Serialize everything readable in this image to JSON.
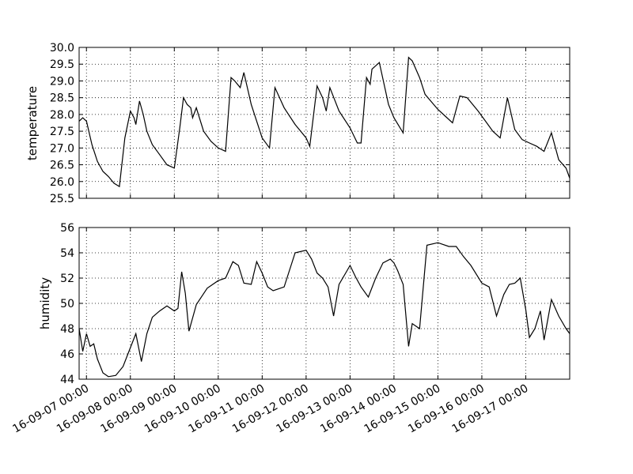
{
  "x_tick_labels": [
    "16-09-07 00:00",
    "16-09-08 00:00",
    "16-09-09 00:00",
    "16-09-10 00:00",
    "16-09-11 00:00",
    "16-09-12 00:00",
    "16-09-13 00:00",
    "16-09-14 00:00",
    "16-09-15 00:00",
    "16-09-16 00:00",
    "16-09-17 00:00"
  ],
  "chart_data": [
    {
      "type": "line",
      "ylabel": "temperature",
      "ylim": [
        25.5,
        30.0
      ],
      "yticks": [
        25.5,
        26.0,
        26.5,
        27.0,
        27.5,
        28.0,
        28.5,
        29.0,
        29.5,
        30.0
      ],
      "ytick_labels": [
        "25.5",
        "26.0",
        "26.5",
        "27.0",
        "27.5",
        "28.0",
        "28.5",
        "29.0",
        "29.5",
        "30.0"
      ],
      "grid": true,
      "color": "#000000",
      "x": [
        "2016-09-06 20:00",
        "2016-09-06 22:00",
        "2016-09-07 00:00",
        "2016-09-07 03:00",
        "2016-09-07 06:00",
        "2016-09-07 09:00",
        "2016-09-07 12:00",
        "2016-09-07 15:00",
        "2016-09-07 18:00",
        "2016-09-07 21:00",
        "2016-09-08 00:00",
        "2016-09-08 02:00",
        "2016-09-08 03:00",
        "2016-09-08 05:00",
        "2016-09-08 07:00",
        "2016-09-08 09:00",
        "2016-09-08 12:00",
        "2016-09-08 16:00",
        "2016-09-08 20:00",
        "2016-09-09 00:00",
        "2016-09-09 03:00",
        "2016-09-09 05:00",
        "2016-09-09 07:00",
        "2016-09-09 09:00",
        "2016-09-09 10:00",
        "2016-09-09 12:00",
        "2016-09-09 16:00",
        "2016-09-09 20:00",
        "2016-09-10 00:00",
        "2016-09-10 04:00",
        "2016-09-10 07:00",
        "2016-09-10 09:00",
        "2016-09-10 12:00",
        "2016-09-10 14:00",
        "2016-09-10 18:00",
        "2016-09-11 00:00",
        "2016-09-11 04:00",
        "2016-09-11 07:00",
        "2016-09-11 12:00",
        "2016-09-11 18:00",
        "2016-09-12 00:00",
        "2016-09-12 02:00",
        "2016-09-12 06:00",
        "2016-09-12 09:00",
        "2016-09-12 11:00",
        "2016-09-12 13:00",
        "2016-09-12 18:00",
        "2016-09-13 00:00",
        "2016-09-13 04:00",
        "2016-09-13 06:00",
        "2016-09-13 09:00",
        "2016-09-13 11:00",
        "2016-09-13 12:00",
        "2016-09-13 16:00",
        "2016-09-13 21:00",
        "2016-09-14 00:00",
        "2016-09-14 05:00",
        "2016-09-14 08:00",
        "2016-09-14 10:00",
        "2016-09-14 14:00",
        "2016-09-14 17:00",
        "2016-09-15 00:00",
        "2016-09-15 04:00",
        "2016-09-15 08:00",
        "2016-09-15 12:00",
        "2016-09-15 16:00",
        "2016-09-15 22:00",
        "2016-09-16 02:00",
        "2016-09-16 06:00",
        "2016-09-16 10:00",
        "2016-09-16 14:00",
        "2016-09-16 18:00",
        "2016-09-16 22:00",
        "2016-09-17 02:00",
        "2016-09-17 06:00",
        "2016-09-17 10:00",
        "2016-09-17 14:00",
        "2016-09-17 18:00",
        "2016-09-17 22:00",
        "2016-09-18 00:00"
      ],
      "y": [
        27.8,
        27.9,
        27.8,
        27.1,
        26.6,
        26.3,
        26.15,
        25.95,
        25.85,
        27.3,
        28.1,
        27.9,
        27.7,
        28.4,
        28.0,
        27.5,
        27.1,
        26.8,
        26.5,
        26.4,
        27.6,
        28.5,
        28.3,
        28.2,
        27.9,
        28.2,
        27.5,
        27.2,
        27.0,
        26.9,
        29.1,
        29.0,
        28.8,
        29.25,
        28.3,
        27.3,
        27.0,
        28.8,
        28.2,
        27.7,
        27.3,
        27.05,
        28.85,
        28.5,
        28.1,
        28.8,
        28.1,
        27.6,
        27.15,
        27.15,
        29.1,
        28.9,
        29.35,
        29.55,
        28.3,
        27.9,
        27.45,
        29.7,
        29.6,
        29.1,
        28.6,
        28.15,
        27.95,
        27.75,
        28.55,
        28.5,
        28.1,
        27.8,
        27.5,
        27.3,
        28.5,
        27.55,
        27.25,
        27.15,
        27.05,
        26.9,
        27.45,
        26.65,
        26.4,
        26.1
      ]
    },
    {
      "type": "line",
      "ylabel": "humidity",
      "ylim": [
        44,
        56
      ],
      "yticks": [
        44,
        46,
        48,
        50,
        52,
        54,
        56
      ],
      "ytick_labels": [
        "44",
        "46",
        "48",
        "50",
        "52",
        "54",
        "56"
      ],
      "grid": true,
      "color": "#000000",
      "x": [
        "2016-09-06 20:00",
        "2016-09-06 22:00",
        "2016-09-07 00:00",
        "2016-09-07 02:00",
        "2016-09-07 04:00",
        "2016-09-07 06:00",
        "2016-09-07 09:00",
        "2016-09-07 12:00",
        "2016-09-07 16:00",
        "2016-09-07 20:00",
        "2016-09-08 00:00",
        "2016-09-08 03:00",
        "2016-09-08 06:00",
        "2016-09-08 09:00",
        "2016-09-08 12:00",
        "2016-09-08 16:00",
        "2016-09-08 20:00",
        "2016-09-09 00:00",
        "2016-09-09 02:00",
        "2016-09-09 04:00",
        "2016-09-09 06:00",
        "2016-09-09 08:00",
        "2016-09-09 12:00",
        "2016-09-09 18:00",
        "2016-09-10 00:00",
        "2016-09-10 04:00",
        "2016-09-10 08:00",
        "2016-09-10 11:00",
        "2016-09-10 14:00",
        "2016-09-10 18:00",
        "2016-09-10 21:00",
        "2016-09-11 00:00",
        "2016-09-11 03:00",
        "2016-09-11 06:00",
        "2016-09-11 12:00",
        "2016-09-11 18:00",
        "2016-09-12 00:00",
        "2016-09-12 03:00",
        "2016-09-12 06:00",
        "2016-09-12 09:00",
        "2016-09-12 12:00",
        "2016-09-12 15:00",
        "2016-09-12 18:00",
        "2016-09-12 22:00",
        "2016-09-13 00:00",
        "2016-09-13 03:00",
        "2016-09-13 06:00",
        "2016-09-13 10:00",
        "2016-09-13 14:00",
        "2016-09-13 18:00",
        "2016-09-13 22:00",
        "2016-09-14 00:00",
        "2016-09-14 02:00",
        "2016-09-14 05:00",
        "2016-09-14 08:00",
        "2016-09-14 10:00",
        "2016-09-14 14:00",
        "2016-09-14 18:00",
        "2016-09-15 00:00",
        "2016-09-15 06:00",
        "2016-09-15 10:00",
        "2016-09-15 14:00",
        "2016-09-15 18:00",
        "2016-09-16 00:00",
        "2016-09-16 04:00",
        "2016-09-16 08:00",
        "2016-09-16 12:00",
        "2016-09-16 15:00",
        "2016-09-16 18:00",
        "2016-09-16 21:00",
        "2016-09-17 00:00",
        "2016-09-17 02:00",
        "2016-09-17 05:00",
        "2016-09-17 08:00",
        "2016-09-17 10:00",
        "2016-09-17 14:00",
        "2016-09-17 18:00",
        "2016-09-17 22:00",
        "2016-09-18 00:00"
      ],
      "y": [
        48.0,
        46.2,
        47.6,
        46.6,
        46.8,
        45.6,
        44.5,
        44.2,
        44.3,
        45.0,
        46.5,
        47.6,
        45.4,
        47.6,
        48.9,
        49.4,
        49.8,
        49.4,
        49.6,
        52.5,
        50.8,
        47.8,
        49.9,
        51.2,
        51.8,
        52.0,
        53.3,
        53.0,
        51.6,
        51.5,
        53.3,
        52.4,
        51.3,
        51.0,
        51.3,
        54.0,
        54.2,
        53.5,
        52.4,
        52.0,
        51.3,
        49.0,
        51.5,
        52.5,
        53.0,
        52.1,
        51.3,
        50.5,
        52.0,
        53.2,
        53.5,
        53.2,
        52.6,
        51.5,
        46.6,
        48.4,
        48.0,
        54.6,
        54.8,
        54.5,
        54.5,
        53.7,
        53.0,
        51.6,
        51.3,
        49.0,
        50.7,
        51.5,
        51.6,
        52.0,
        49.5,
        47.3,
        48.0,
        49.4,
        47.1,
        50.3,
        49.0,
        48.0,
        47.6
      ]
    }
  ]
}
